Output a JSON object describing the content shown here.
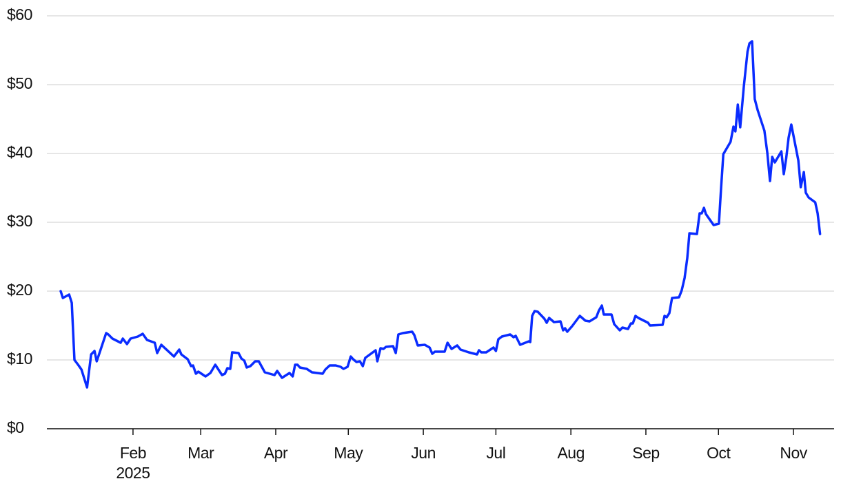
{
  "chart_data": {
    "type": "line",
    "color": "#0a2cff",
    "grid": true,
    "ylim": [
      0,
      60
    ],
    "yticks": [
      {
        "value": 0,
        "label": "$0"
      },
      {
        "value": 10,
        "label": "$10"
      },
      {
        "value": 20,
        "label": "$20"
      },
      {
        "value": 30,
        "label": "$30"
      },
      {
        "value": 40,
        "label": "$40"
      },
      {
        "value": 50,
        "label": "$50"
      },
      {
        "value": 60,
        "label": "$60"
      }
    ],
    "xlim": [
      -4.6,
      320.8
    ],
    "xticks": [
      {
        "value": 31,
        "label": "Feb"
      },
      {
        "value": 59,
        "label": "Mar"
      },
      {
        "value": 90,
        "label": "Apr"
      },
      {
        "value": 120,
        "label": "May"
      },
      {
        "value": 151,
        "label": "Jun"
      },
      {
        "value": 181,
        "label": "Jul"
      },
      {
        "value": 212,
        "label": "Aug"
      },
      {
        "value": 243,
        "label": "Sep"
      },
      {
        "value": 273,
        "label": "Oct"
      },
      {
        "value": 304,
        "label": "Nov"
      }
    ],
    "year_label": "2025",
    "x": [
      1.1,
      2,
      4.6,
      5.7,
      6.8,
      8.3,
      9.7,
      12,
      12.8,
      13.7,
      15.1,
      16,
      19.9,
      20.8,
      22.5,
      25.9,
      26.8,
      28.5,
      30,
      33,
      35,
      36.8,
      40,
      41,
      42.7,
      47.9,
      50.1,
      51,
      53.6,
      55,
      55.8,
      57,
      58,
      61,
      63,
      65,
      67.8,
      69,
      70,
      71.2,
      72,
      74.6,
      75.8,
      77,
      78,
      79.5,
      81.5,
      83,
      85.5,
      89.5,
      90.6,
      92.6,
      95.7,
      97,
      98,
      99,
      100,
      102.8,
      105,
      109.4,
      110.5,
      112.3,
      114.8,
      116.8,
      118,
      119.7,
      121,
      122,
      123.4,
      124.8,
      126,
      127,
      131.3,
      132,
      133.3,
      134.5,
      135.6,
      138.5,
      139.6,
      140.7,
      142.5,
      146.4,
      147.3,
      148.7,
      151.6,
      153.6,
      154.7,
      155.8,
      159.8,
      161,
      162.7,
      165,
      166.4,
      169.8,
      173.2,
      174,
      175,
      177,
      180,
      181,
      182,
      183.5,
      186.9,
      188.3,
      189.2,
      191,
      194.6,
      195.2,
      196,
      197,
      198.3,
      201,
      202,
      203,
      204,
      205,
      207.7,
      208.8,
      209.6,
      210.5,
      212.5,
      215.7,
      218,
      219.7,
      222.5,
      223.6,
      224.8,
      225.6,
      228.8,
      229.9,
      232.2,
      233.3,
      235.6,
      236.8,
      237.6,
      238.7,
      239.9,
      243.9,
      244.7,
      249.9,
      250.7,
      251.6,
      252.7,
      253.8,
      256.7,
      257.8,
      259,
      260.1,
      261,
      264.1,
      265.2,
      266.1,
      267,
      267.8,
      271,
      273.2,
      274,
      275,
      278,
      279.2,
      280,
      281,
      282,
      283.5,
      285,
      285.8,
      286.9,
      288,
      289.2,
      292,
      293.2,
      294.3,
      295.2,
      296.3,
      299,
      300,
      301,
      302,
      303.1,
      306,
      307,
      308.3,
      309.1,
      310.3,
      313,
      314,
      315
    ],
    "values": [
      20.0,
      19.0,
      19.5,
      18.3,
      10.0,
      9.3,
      8.6,
      6.0,
      8.3,
      10.8,
      11.3,
      9.8,
      13.9,
      13.7,
      13.1,
      12.5,
      13.1,
      12.3,
      13.1,
      13.4,
      13.8,
      12.9,
      12.5,
      11.0,
      12.2,
      10.5,
      11.5,
      10.8,
      10.1,
      9.1,
      9.2,
      8.0,
      8.3,
      7.6,
      8.1,
      9.3,
      7.8,
      8.0,
      8.8,
      8.7,
      11.1,
      11.0,
      10.2,
      9.9,
      8.9,
      9.1,
      9.8,
      9.8,
      8.2,
      7.8,
      8.4,
      7.4,
      8.1,
      7.6,
      9.3,
      9.3,
      8.9,
      8.7,
      8.2,
      8.0,
      8.6,
      9.2,
      9.2,
      9.0,
      8.7,
      9.0,
      10.5,
      10.1,
      9.7,
      9.8,
      9.1,
      10.3,
      11.4,
      9.8,
      11.7,
      11.6,
      11.9,
      12.0,
      11.0,
      13.7,
      13.9,
      14.1,
      13.6,
      12.1,
      12.2,
      11.8,
      10.9,
      11.2,
      11.2,
      12.5,
      11.6,
      12.1,
      11.5,
      11.1,
      10.8,
      11.4,
      11.1,
      11.1,
      11.8,
      11.3,
      13.0,
      13.4,
      13.7,
      13.3,
      13.5,
      12.2,
      12.7,
      12.6,
      16.4,
      17.1,
      17.0,
      16.0,
      15.4,
      16.1,
      15.8,
      15.5,
      15.6,
      14.3,
      14.6,
      14.1,
      14.9,
      16.4,
      15.7,
      15.6,
      16.2,
      17.2,
      17.9,
      16.6,
      16.6,
      15.2,
      14.3,
      14.7,
      14.5,
      15.3,
      15.3,
      16.4,
      16.1,
      15.4,
      15.0,
      15.1,
      16.4,
      16.2,
      16.8,
      19.0,
      19.1,
      20.1,
      21.9,
      24.8,
      28.4,
      28.3,
      31.3,
      31.3,
      32.1,
      31.2,
      29.6,
      29.8,
      34.6,
      39.9,
      41.7,
      43.9,
      43.2,
      47.1,
      43.8,
      49.8,
      54.8,
      56.0,
      56.3,
      47.9,
      46.3,
      43.3,
      40.1,
      36.0,
      39.5,
      38.7,
      40.3,
      37.0,
      39.3,
      42.3,
      44.2,
      39.0,
      35.1,
      37.3,
      34.3,
      33.6,
      32.9,
      31.3,
      28.3
    ]
  }
}
